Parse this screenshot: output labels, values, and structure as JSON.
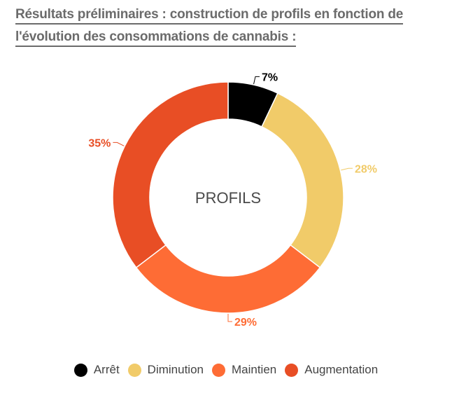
{
  "header": {
    "title_line1": "Résultats préliminaires : construction de profils en fonction de",
    "title_line2": "l'évolution des consommations de cannabis :"
  },
  "chart_data": {
    "type": "pie",
    "donut": true,
    "center_label": "PROFILS",
    "legend_position": "bottom",
    "slices": [
      {
        "label": "Arrêt",
        "value": 7,
        "value_label": "7%",
        "color": "#000000",
        "label_color": "#000000"
      },
      {
        "label": "Diminution",
        "value": 28,
        "value_label": "28%",
        "color": "#f1cb69",
        "label_color": "#f1cb69"
      },
      {
        "label": "Maintien",
        "value": 29,
        "value_label": "29%",
        "color": "#fe6c35",
        "label_color": "#fe6c35"
      },
      {
        "label": "Augmentation",
        "value": 35,
        "value_label": "35%",
        "color": "#e84e25",
        "label_color": "#e84e25"
      }
    ]
  }
}
